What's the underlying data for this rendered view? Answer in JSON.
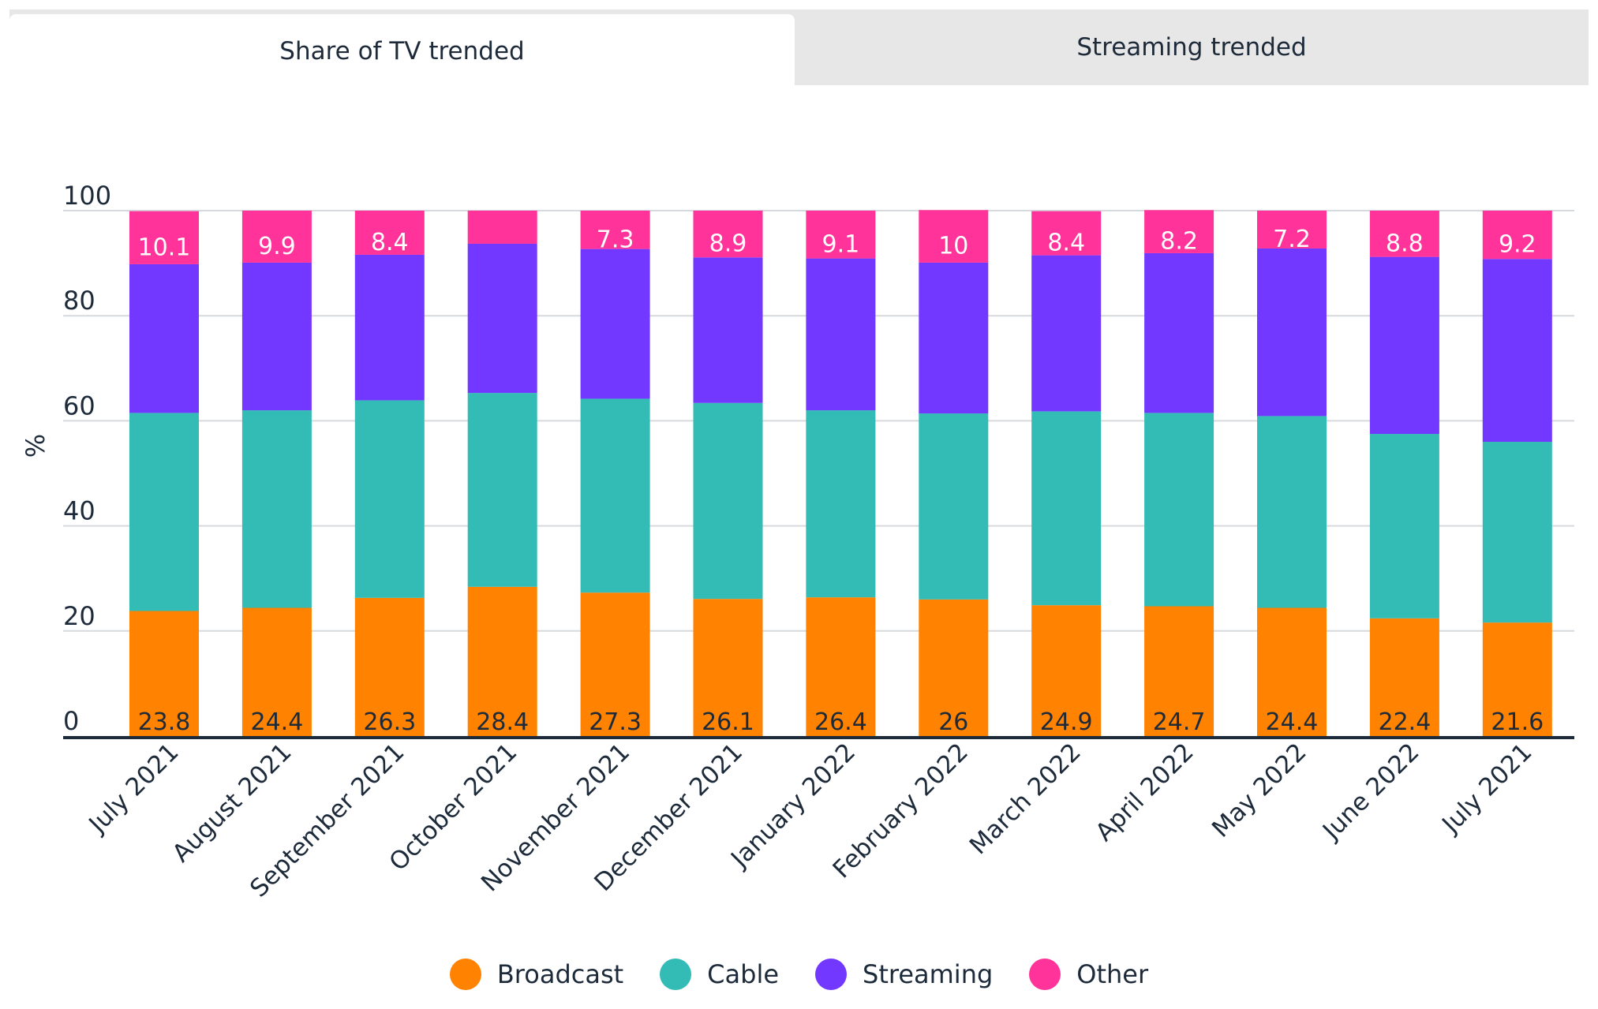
{
  "tabs": [
    {
      "label": "Share of TV trended",
      "active": true
    },
    {
      "label": "Streaming trended",
      "active": false
    }
  ],
  "chart_data": {
    "type": "bar",
    "stacked": true,
    "title": "",
    "xlabel": "",
    "ylabel": "%",
    "ylim": [
      0,
      100
    ],
    "yticks": [
      0,
      20,
      40,
      60,
      80,
      100
    ],
    "grid": true,
    "legend_position": "bottom",
    "categories": [
      "July 2021",
      "August 2021",
      "September 2021",
      "October 2021",
      "November 2021",
      "December 2021",
      "January 2022",
      "February 2022",
      "March 2022",
      "April 2022",
      "May 2022",
      "June 2022",
      "July 2021"
    ],
    "series": [
      {
        "name": "Broadcast",
        "color": "#ff8200",
        "label_color": "#1d2a3a",
        "values": [
          23.8,
          24.4,
          26.3,
          28.4,
          27.3,
          26.1,
          26.4,
          26,
          24.9,
          24.7,
          24.4,
          22.4,
          21.6
        ]
      },
      {
        "name": "Cable",
        "color": "#33bbb6",
        "label_color": "#1d2a3a",
        "values": [
          37.7,
          37.6,
          37.6,
          36.9,
          36.9,
          37.3,
          35.6,
          35.4,
          36.9,
          36.8,
          36.5,
          35.1,
          34.4
        ]
      },
      {
        "name": "Streaming",
        "color": "#7338ff",
        "label_color": "#ffffff",
        "values": [
          28.3,
          28.1,
          27.7,
          28.4,
          28.5,
          27.7,
          28.9,
          28.7,
          29.7,
          30.4,
          31.9,
          33.7,
          34.8
        ]
      },
      {
        "name": "Other",
        "color": "#ff3399",
        "label_color": "#ffffff",
        "values": [
          10.1,
          9.9,
          8.4,
          null,
          7.3,
          8.9,
          9.1,
          10,
          8.4,
          8.2,
          7.2,
          8.8,
          9.2
        ]
      }
    ],
    "other_unlabeled_values": [
      null,
      null,
      null,
      6.3,
      null,
      null,
      null,
      null,
      null,
      null,
      null,
      null,
      null
    ]
  }
}
